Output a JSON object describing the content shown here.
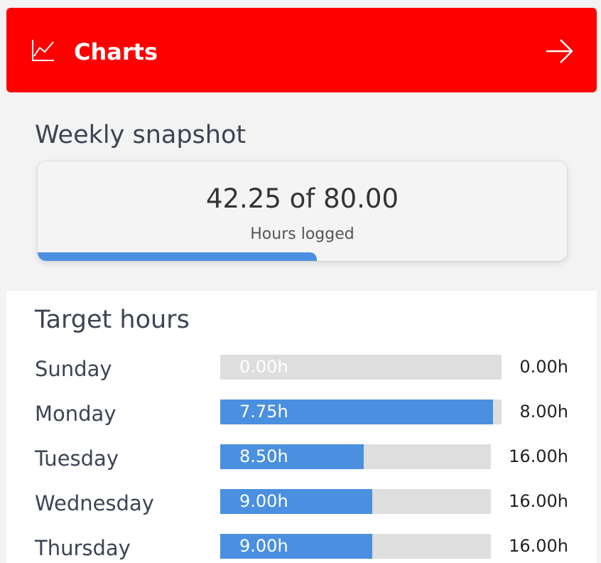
{
  "header": {
    "title": "Charts",
    "icon": "line-chart-icon",
    "action_icon": "arrow-right-icon",
    "background_color": "#fe0000"
  },
  "snapshot": {
    "title": "Weekly snapshot",
    "value": "42.25 of 80.00",
    "caption": "Hours logged",
    "logged_hours": 42.25,
    "total_hours": 80.0,
    "progress_fraction": 0.528
  },
  "target": {
    "title": "Target hours",
    "accent_color": "#4a8fe0",
    "days": [
      {
        "day": "Sunday",
        "logged": "0.00h",
        "target": "0.00h",
        "fill_fraction": 0.0
      },
      {
        "day": "Monday",
        "logged": "7.75h",
        "target": "8.00h",
        "fill_fraction": 0.969
      },
      {
        "day": "Tuesday",
        "logged": "8.50h",
        "target": "16.00h",
        "fill_fraction": 0.531
      },
      {
        "day": "Wednesday",
        "logged": "9.00h",
        "target": "16.00h",
        "fill_fraction": 0.5625
      },
      {
        "day": "Thursday",
        "logged": "9.00h",
        "target": "16.00h",
        "fill_fraction": 0.5625
      }
    ]
  }
}
